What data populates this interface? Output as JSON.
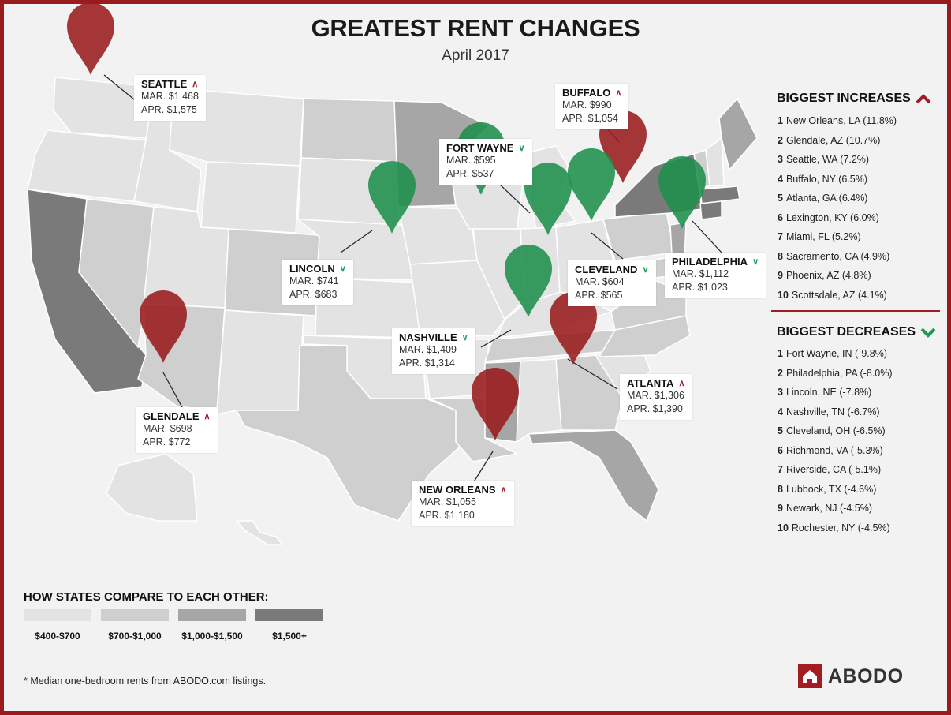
{
  "title": "GREATEST RENT CHANGES",
  "subtitle": "April 2017",
  "callouts": [
    {
      "city": "SEATTLE",
      "dir": "up",
      "mar": "MAR. $1,468",
      "apr": "APR. $1,575"
    },
    {
      "city": "BUFFALO",
      "dir": "up",
      "mar": "MAR. $990",
      "apr": "APR. $1,054"
    },
    {
      "city": "FORT WAYNE",
      "dir": "down",
      "mar": "MAR. $595",
      "apr": "APR. $537"
    },
    {
      "city": "LINCOLN",
      "dir": "down",
      "mar": "MAR. $741",
      "apr": "APR. $683"
    },
    {
      "city": "CLEVELAND",
      "dir": "down",
      "mar": "MAR. $604",
      "apr": "APR. $565"
    },
    {
      "city": "PHILADELPHIA",
      "dir": "down",
      "mar": "MAR. $1,112",
      "apr": "APR. $1,023"
    },
    {
      "city": "NASHVILLE",
      "dir": "down",
      "mar": "MAR. $1,409",
      "apr": "APR. $1,314"
    },
    {
      "city": "ATLANTA",
      "dir": "up",
      "mar": "MAR. $1,306",
      "apr": "APR. $1,390"
    },
    {
      "city": "GLENDALE",
      "dir": "up",
      "mar": "MAR. $698",
      "apr": "APR. $772"
    },
    {
      "city": "NEW ORLEANS",
      "dir": "up",
      "mar": "MAR. $1,055",
      "apr": "APR. $1,180"
    }
  ],
  "increases": {
    "title": "BIGGEST INCREASES",
    "items": [
      {
        "rank": "1",
        "text": "New Orleans, LA (11.8%)"
      },
      {
        "rank": "2",
        "text": "Glendale, AZ (10.7%)"
      },
      {
        "rank": "3",
        "text": "Seattle, WA (7.2%)"
      },
      {
        "rank": "4",
        "text": "Buffalo, NY (6.5%)"
      },
      {
        "rank": "5",
        "text": "Atlanta, GA (6.4%)"
      },
      {
        "rank": "6",
        "text": "Lexington, KY (6.0%)"
      },
      {
        "rank": "7",
        "text": "Miami, FL (5.2%)"
      },
      {
        "rank": "8",
        "text": "Sacramento, CA (4.9%)"
      },
      {
        "rank": "9",
        "text": "Phoenix, AZ (4.8%)"
      },
      {
        "rank": "10",
        "text": "Scottsdale, AZ (4.1%)"
      }
    ]
  },
  "decreases": {
    "title": "BIGGEST DECREASES",
    "items": [
      {
        "rank": "1",
        "text": "Fort Wayne, IN (-9.8%)"
      },
      {
        "rank": "2",
        "text": "Philadelphia, PA (-8.0%)"
      },
      {
        "rank": "3",
        "text": "Lincoln, NE (-7.8%)"
      },
      {
        "rank": "4",
        "text": "Nashville, TN (-6.7%)"
      },
      {
        "rank": "5",
        "text": "Cleveland, OH (-6.5%)"
      },
      {
        "rank": "6",
        "text": "Richmond, VA (-5.3%)"
      },
      {
        "rank": "7",
        "text": "Riverside, CA (-5.1%)"
      },
      {
        "rank": "8",
        "text": "Lubbock, TX (-4.6%)"
      },
      {
        "rank": "9",
        "text": "Newark, NJ (-4.5%)"
      },
      {
        "rank": "10",
        "text": "Rochester, NY (-4.5%)"
      }
    ]
  },
  "legend": {
    "title": "HOW STATES COMPARE TO EACH OTHER:",
    "items": [
      {
        "label": "$400-$700",
        "color": "#e3e3e3"
      },
      {
        "label": "$700-$1,000",
        "color": "#cfcfcf"
      },
      {
        "label": "$1,000-$1,500",
        "color": "#a6a6a6"
      },
      {
        "label": "$1,500+",
        "color": "#7a7a7a"
      }
    ]
  },
  "colors": {
    "increase": "#9a1b1e",
    "decrease": "#1e8f4c",
    "border": "#9a1b1e"
  },
  "footnote": "* Median one-bedroom rents from ABODO.com listings.",
  "logo": {
    "text": "ABODO",
    "icon": "house-icon"
  }
}
